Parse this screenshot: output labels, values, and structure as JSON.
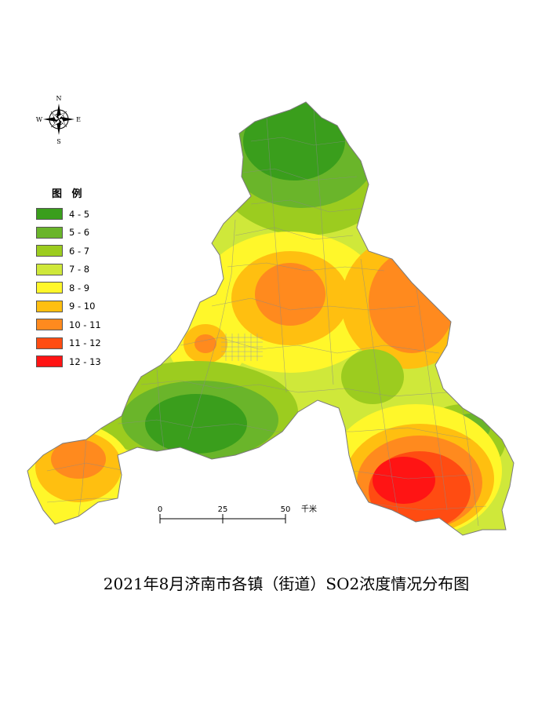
{
  "title": "2021年8月济南市各镇（街道）SO2浓度情况分布图",
  "compass": {
    "n": "N",
    "s": "S",
    "e": "E",
    "w": "W"
  },
  "legend": {
    "title": "图 例",
    "items": [
      {
        "label": "4 - 5",
        "color": "#3a9e1c"
      },
      {
        "label": "5 - 6",
        "color": "#6ab52a"
      },
      {
        "label": "6 - 7",
        "color": "#9ccc1f"
      },
      {
        "label": "7 - 8",
        "color": "#cfe83a"
      },
      {
        "label": "8 - 9",
        "color": "#fff72a"
      },
      {
        "label": "9 - 10",
        "color": "#ffbf10"
      },
      {
        "label": "10 - 11",
        "color": "#ff8a1e"
      },
      {
        "label": "11 - 12",
        "color": "#ff4c12"
      },
      {
        "label": "12 - 13",
        "color": "#ff1414"
      }
    ]
  },
  "scale_bar": {
    "ticks": [
      "0",
      "25",
      "50"
    ],
    "unit": "千米"
  }
}
